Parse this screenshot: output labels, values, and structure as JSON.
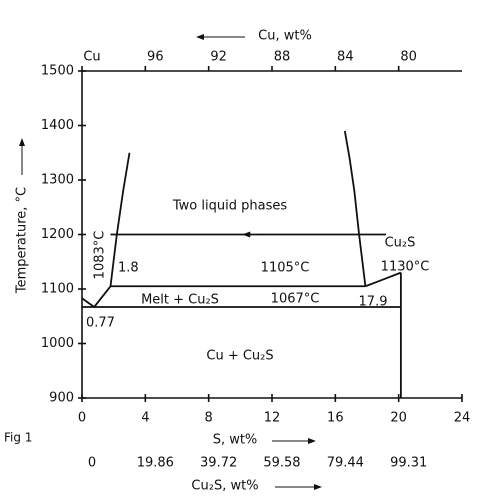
{
  "chart_data": {
    "type": "phase",
    "figure_label": "Fig 1",
    "xlabel": "S, wt%",
    "ylabel": "Temperature, °C",
    "xlim": [
      0,
      24
    ],
    "xticks": [
      0,
      4,
      8,
      12,
      16,
      20,
      24
    ],
    "ylim": [
      900,
      1500
    ],
    "yticks": [
      900,
      1000,
      1100,
      1200,
      1300,
      1400,
      1500
    ],
    "top_axis": {
      "label": "Cu, wt%",
      "lim": [
        100,
        76
      ],
      "ticks": [
        {
          "value": 100,
          "label": "Cu"
        },
        96,
        92,
        88,
        84,
        80
      ]
    },
    "bottom_axis2": {
      "label": "Cu₂S, wt%",
      "lim": [
        0,
        119.17
      ],
      "ticks": [
        0,
        19.86,
        39.72,
        59.58,
        79.44,
        99.31
      ]
    },
    "color": "#111111",
    "series": [
      {
        "x": [
          0,
          0.77,
          1.8
        ],
        "values": [
          1083,
          1067,
          1105
        ]
      },
      {
        "x": [
          1.8,
          2.2,
          2.6,
          3.0
        ],
        "values": [
          1105,
          1200,
          1280,
          1350
        ]
      },
      {
        "x": [
          17.9,
          17.5,
          17.2,
          16.9,
          16.6
        ],
        "values": [
          1105,
          1200,
          1280,
          1340,
          1390
        ]
      },
      {
        "x": [
          17.9,
          20.14
        ],
        "values": [
          1105,
          1130
        ]
      },
      {
        "x": [
          1.8,
          17.9
        ],
        "values": [
          1105,
          1105
        ]
      },
      {
        "x": [
          0,
          20.14
        ],
        "values": [
          1067,
          1067
        ]
      },
      {
        "x": [
          20.14,
          20.14
        ],
        "values": [
          900,
          1130
        ]
      },
      {
        "x": [
          19.2,
          1.8
        ],
        "values": [
          1200,
          1200
        ]
      }
    ],
    "annotations": [
      "Two liquid phases",
      "Cu₂S",
      "1130°C",
      "1105°C",
      "1.8",
      "Melt + Cu₂S",
      "1067°C",
      "17.9",
      "0.77",
      "Cu + Cu₂S",
      "1083°C"
    ]
  }
}
